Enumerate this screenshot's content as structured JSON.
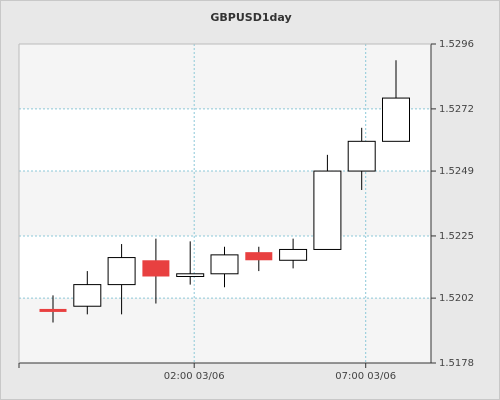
{
  "chart_data": {
    "type": "candlestick",
    "title": "GBPUSD1day",
    "x_tick_labels": [
      "02:00 03/06",
      "07:00 03/06"
    ],
    "y_tick_labels": [
      "1.5296",
      "1.5272",
      "1.5249",
      "1.5225",
      "1.5202",
      "1.5178"
    ],
    "ylim": [
      1.5178,
      1.5296
    ],
    "grid": true,
    "colors": {
      "bullish_fill": "#ffffff",
      "bearish_fill": "#e84040",
      "wick": "#000000",
      "grid": "#8cc8d8",
      "band": "#f5f5f5"
    },
    "candles": [
      {
        "open": 1.5198,
        "high": 1.5203,
        "low": 1.5193,
        "close": 1.5197
      },
      {
        "open": 1.5199,
        "high": 1.5212,
        "low": 1.5196,
        "close": 1.5207
      },
      {
        "open": 1.5207,
        "high": 1.5222,
        "low": 1.5196,
        "close": 1.5217
      },
      {
        "open": 1.5216,
        "high": 1.5224,
        "low": 1.52,
        "close": 1.521
      },
      {
        "open": 1.521,
        "high": 1.5223,
        "low": 1.5207,
        "close": 1.5211
      },
      {
        "open": 1.5211,
        "high": 1.5221,
        "low": 1.5206,
        "close": 1.5218
      },
      {
        "open": 1.5219,
        "high": 1.5221,
        "low": 1.5212,
        "close": 1.5216
      },
      {
        "open": 1.5216,
        "high": 1.5224,
        "low": 1.5213,
        "close": 1.522
      },
      {
        "open": 1.522,
        "high": 1.5255,
        "low": 1.522,
        "close": 1.5249
      },
      {
        "open": 1.5249,
        "high": 1.5265,
        "low": 1.5242,
        "close": 1.526
      },
      {
        "open": 1.526,
        "high": 1.529,
        "low": 1.526,
        "close": 1.5276
      }
    ]
  }
}
